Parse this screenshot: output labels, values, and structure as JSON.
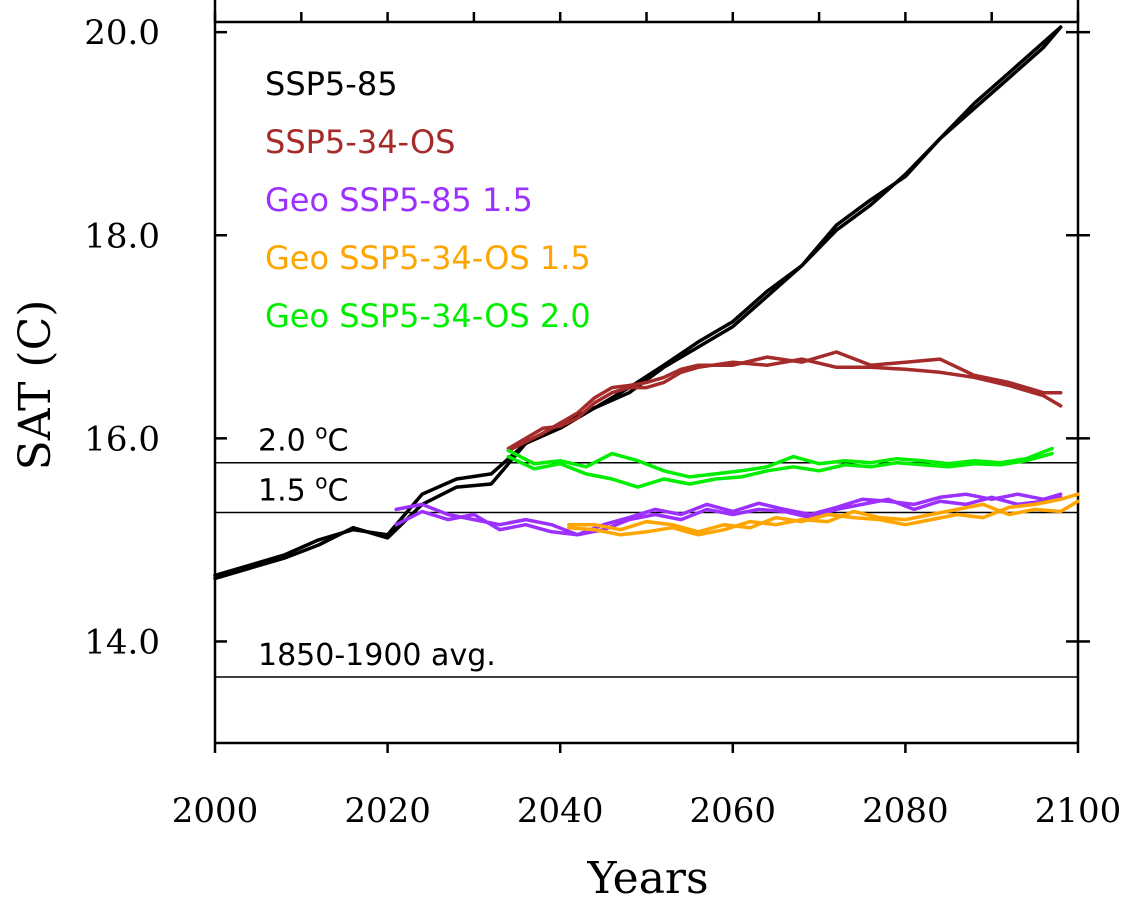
{
  "chart_data": {
    "type": "line",
    "title": "",
    "xlabel": "Years",
    "ylabel": "SAT (C)",
    "xlim": [
      2000,
      2100
    ],
    "ylim": [
      13.0,
      20.1
    ],
    "x_ticks": [
      2000,
      2020,
      2040,
      2060,
      2080,
      2100
    ],
    "x_tick_labels": [
      "2000",
      "2020",
      "2040",
      "2060",
      "2080",
      "2100"
    ],
    "y_ticks": [
      14.0,
      16.0,
      18.0,
      20.0
    ],
    "y_tick_labels": [
      "14.0",
      "16.0",
      "18.0",
      "20.0"
    ],
    "grid": false,
    "legend_position": "top-left",
    "reference_lines": [
      {
        "label": "2.0 °C",
        "label_base": "2.0 ",
        "label_sup": "o",
        "label_unit": "C",
        "y": 15.76
      },
      {
        "label": "1.5 °C",
        "label_base": "1.5 ",
        "label_sup": "o",
        "label_unit": "C",
        "y": 15.27
      },
      {
        "label": "1850-1900 avg.",
        "label_base": "1850-1900 avg.",
        "label_sup": "",
        "label_unit": "",
        "y": 13.65
      }
    ],
    "series": [
      {
        "name": "SSP5-85",
        "color": "#000000",
        "x": [
          2000,
          2004,
          2008,
          2012,
          2016,
          2020,
          2024,
          2028,
          2032,
          2036,
          2040,
          2044,
          2048,
          2052,
          2056,
          2060,
          2064,
          2068,
          2072,
          2076,
          2080,
          2084,
          2088,
          2092,
          2096,
          2098
        ],
        "values": [
          14.65,
          14.75,
          14.85,
          15.0,
          15.1,
          15.05,
          15.45,
          15.6,
          15.65,
          15.95,
          16.1,
          16.3,
          16.45,
          16.7,
          16.9,
          17.1,
          17.4,
          17.7,
          18.05,
          18.3,
          18.6,
          18.95,
          19.3,
          19.6,
          19.9,
          20.05
        ]
      },
      {
        "name": "SSP5-85",
        "color": "#000000",
        "x": [
          2000,
          2004,
          2008,
          2012,
          2016,
          2020,
          2024,
          2028,
          2032,
          2036,
          2040,
          2044,
          2048,
          2052,
          2056,
          2060,
          2064,
          2068,
          2072,
          2076,
          2080,
          2084,
          2088,
          2092,
          2096,
          2098
        ],
        "values": [
          14.62,
          14.72,
          14.82,
          14.95,
          15.12,
          15.02,
          15.35,
          15.52,
          15.55,
          15.95,
          16.15,
          16.3,
          16.5,
          16.72,
          16.95,
          17.15,
          17.45,
          17.7,
          18.1,
          18.35,
          18.58,
          18.95,
          19.25,
          19.55,
          19.85,
          20.05
        ]
      },
      {
        "name": "SSP5-34-OS",
        "color": "#a52a2a",
        "x": [
          2034,
          2038,
          2040,
          2042,
          2044,
          2046,
          2048,
          2050,
          2052,
          2054,
          2056,
          2060,
          2064,
          2068,
          2072,
          2076,
          2080,
          2084,
          2088,
          2092,
          2096,
          2098
        ],
        "values": [
          15.88,
          16.05,
          16.15,
          16.25,
          16.4,
          16.5,
          16.52,
          16.55,
          16.6,
          16.68,
          16.72,
          16.72,
          16.8,
          16.75,
          16.85,
          16.72,
          16.75,
          16.78,
          16.62,
          16.55,
          16.45,
          16.45
        ]
      },
      {
        "name": "SSP5-34-OS",
        "color": "#a52a2a",
        "x": [
          2034,
          2038,
          2040,
          2042,
          2044,
          2046,
          2048,
          2050,
          2052,
          2054,
          2056,
          2060,
          2064,
          2068,
          2072,
          2076,
          2080,
          2084,
          2088,
          2092,
          2096,
          2098
        ],
        "values": [
          15.9,
          16.1,
          16.12,
          16.2,
          16.35,
          16.45,
          16.5,
          16.5,
          16.55,
          16.65,
          16.7,
          16.75,
          16.72,
          16.78,
          16.7,
          16.7,
          16.68,
          16.65,
          16.6,
          16.52,
          16.42,
          16.32
        ]
      },
      {
        "name": "Geo SSP5-85 1.5",
        "color": "#9b30ff",
        "x": [
          2021,
          2024,
          2027,
          2030,
          2033,
          2036,
          2039,
          2042,
          2045,
          2048,
          2051,
          2054,
          2057,
          2060,
          2063,
          2066,
          2069,
          2072,
          2075,
          2078,
          2081,
          2084,
          2087,
          2090,
          2093,
          2096,
          2098
        ],
        "values": [
          15.3,
          15.35,
          15.25,
          15.2,
          15.15,
          15.2,
          15.15,
          15.05,
          15.15,
          15.22,
          15.3,
          15.25,
          15.35,
          15.28,
          15.36,
          15.3,
          15.25,
          15.32,
          15.4,
          15.38,
          15.35,
          15.42,
          15.45,
          15.4,
          15.45,
          15.4,
          15.45
        ]
      },
      {
        "name": "Geo SSP5-85 1.5",
        "color": "#9b30ff",
        "x": [
          2021,
          2024,
          2027,
          2030,
          2033,
          2036,
          2039,
          2042,
          2045,
          2048,
          2051,
          2054,
          2057,
          2060,
          2063,
          2066,
          2069,
          2072,
          2075,
          2078,
          2081,
          2084,
          2087,
          2090,
          2093,
          2096,
          2098
        ],
        "values": [
          15.15,
          15.28,
          15.2,
          15.25,
          15.1,
          15.15,
          15.08,
          15.05,
          15.1,
          15.2,
          15.25,
          15.2,
          15.3,
          15.25,
          15.3,
          15.28,
          15.22,
          15.3,
          15.35,
          15.4,
          15.3,
          15.38,
          15.35,
          15.42,
          15.35,
          15.38,
          15.42
        ]
      },
      {
        "name": "Geo SSP5-34-OS 1.5",
        "color": "#ffa500",
        "x": [
          2041,
          2044,
          2047,
          2050,
          2053,
          2056,
          2059,
          2062,
          2065,
          2068,
          2071,
          2074,
          2077,
          2080,
          2083,
          2086,
          2089,
          2092,
          2095,
          2098,
          2100
        ],
        "values": [
          15.15,
          15.15,
          15.1,
          15.18,
          15.15,
          15.08,
          15.15,
          15.12,
          15.22,
          15.18,
          15.25,
          15.22,
          15.2,
          15.15,
          15.2,
          15.25,
          15.22,
          15.32,
          15.35,
          15.4,
          15.45
        ]
      },
      {
        "name": "Geo SSP5-34-OS 1.5",
        "color": "#ffa500",
        "x": [
          2041,
          2044,
          2047,
          2050,
          2053,
          2056,
          2059,
          2062,
          2065,
          2068,
          2071,
          2074,
          2077,
          2080,
          2083,
          2086,
          2089,
          2092,
          2095,
          2098,
          2100
        ],
        "values": [
          15.12,
          15.1,
          15.05,
          15.08,
          15.12,
          15.05,
          15.1,
          15.18,
          15.15,
          15.2,
          15.18,
          15.28,
          15.22,
          15.2,
          15.25,
          15.3,
          15.35,
          15.25,
          15.3,
          15.28,
          15.38
        ]
      },
      {
        "name": "Geo SSP5-34-OS 2.0",
        "color": "#00ee00",
        "x": [
          2034,
          2037,
          2040,
          2043,
          2046,
          2049,
          2052,
          2055,
          2058,
          2061,
          2064,
          2067,
          2070,
          2073,
          2076,
          2079,
          2082,
          2085,
          2088,
          2091,
          2094,
          2097
        ],
        "values": [
          15.88,
          15.75,
          15.78,
          15.72,
          15.85,
          15.78,
          15.68,
          15.62,
          15.65,
          15.68,
          15.72,
          15.82,
          15.75,
          15.78,
          15.76,
          15.8,
          15.78,
          15.75,
          15.78,
          15.76,
          15.8,
          15.9
        ]
      },
      {
        "name": "Geo SSP5-34-OS 2.0",
        "color": "#00ee00",
        "x": [
          2034,
          2037,
          2040,
          2043,
          2046,
          2049,
          2052,
          2055,
          2058,
          2061,
          2064,
          2067,
          2070,
          2073,
          2076,
          2079,
          2082,
          2085,
          2088,
          2091,
          2094,
          2097
        ],
        "values": [
          15.82,
          15.7,
          15.75,
          15.65,
          15.6,
          15.52,
          15.6,
          15.55,
          15.6,
          15.62,
          15.68,
          15.72,
          15.68,
          15.74,
          15.72,
          15.76,
          15.74,
          15.72,
          15.75,
          15.74,
          15.78,
          15.85
        ]
      }
    ],
    "legend": [
      {
        "label": "SSP5-85",
        "color": "#000000"
      },
      {
        "label": "SSP5-34-OS",
        "color": "#a52a2a"
      },
      {
        "label": "Geo SSP5-85 1.5",
        "color": "#9b30ff"
      },
      {
        "label": "Geo SSP5-34-OS 1.5",
        "color": "#ffa500"
      },
      {
        "label": "Geo SSP5-34-OS 2.0",
        "color": "#00ee00"
      }
    ]
  }
}
